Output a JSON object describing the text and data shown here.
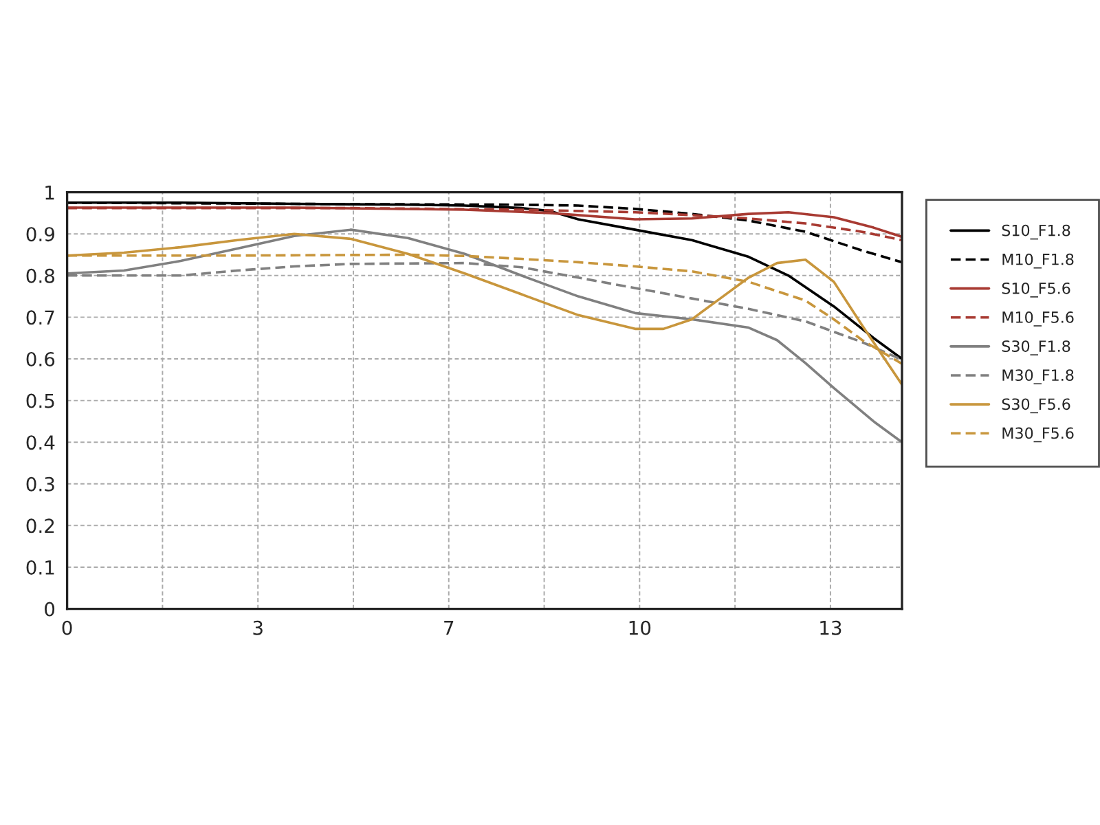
{
  "chart_data": {
    "type": "line",
    "xlim": [
      0,
      14.7
    ],
    "ylim": [
      0,
      1
    ],
    "xticks": [
      0,
      {
        "value": 1.68,
        "label": null
      },
      {
        "value": 3.36,
        "label": "3"
      },
      {
        "value": 5.04,
        "label": null
      },
      {
        "value": 6.72,
        "label": "7"
      },
      {
        "value": 8.4,
        "label": null
      },
      {
        "value": 10.08,
        "label": "10"
      },
      {
        "value": 11.76,
        "label": null
      },
      {
        "value": 13.44,
        "label": "13"
      }
    ],
    "yticks": [
      0,
      0.1,
      0.2,
      0.3,
      0.4,
      0.5,
      0.6,
      0.7,
      0.8,
      0.9,
      1
    ],
    "grid": true,
    "legend": "right",
    "marker": "none",
    "series": [
      {
        "name": "S10_F1.8",
        "color": "#000000",
        "line_style": "solid",
        "x": [
          0,
          2,
          4,
          6,
          7,
          8,
          8.5,
          9,
          10,
          11,
          12,
          12.7,
          13.5,
          14.2,
          14.7
        ],
        "values": [
          0.975,
          0.975,
          0.972,
          0.97,
          0.968,
          0.962,
          0.955,
          0.935,
          0.91,
          0.885,
          0.845,
          0.8,
          0.726,
          0.65,
          0.6
        ]
      },
      {
        "name": "M10_F1.8",
        "color": "#000000",
        "line_style": "dashed",
        "x": [
          0,
          4,
          8,
          9,
          10,
          11,
          12,
          13,
          14,
          14.7
        ],
        "values": [
          0.975,
          0.972,
          0.97,
          0.968,
          0.96,
          0.948,
          0.932,
          0.905,
          0.86,
          0.832
        ]
      },
      {
        "name": "S10_F5.6",
        "color": "#a83a32",
        "line_style": "solid",
        "x": [
          0,
          4,
          7,
          8.5,
          10,
          11,
          12,
          12.7,
          13.5,
          14.2,
          14.7
        ],
        "values": [
          0.963,
          0.963,
          0.958,
          0.95,
          0.935,
          0.937,
          0.948,
          0.952,
          0.94,
          0.915,
          0.893
        ]
      },
      {
        "name": "M10_F5.6",
        "color": "#a83a32",
        "line_style": "dashed",
        "x": [
          0,
          5,
          8,
          10,
          11,
          12,
          13,
          14,
          14.7
        ],
        "values": [
          0.962,
          0.962,
          0.958,
          0.952,
          0.945,
          0.937,
          0.925,
          0.905,
          0.885
        ]
      },
      {
        "name": "S30_F1.8",
        "color": "#808080",
        "line_style": "solid",
        "x": [
          0,
          1,
          2,
          3,
          4,
          5,
          6,
          7,
          8,
          9,
          10,
          11,
          12,
          12.5,
          13,
          13.5,
          14.2,
          14.7
        ],
        "values": [
          0.805,
          0.812,
          0.835,
          0.865,
          0.895,
          0.91,
          0.89,
          0.852,
          0.8,
          0.75,
          0.71,
          0.695,
          0.675,
          0.645,
          0.59,
          0.53,
          0.45,
          0.4
        ]
      },
      {
        "name": "M30_F1.8",
        "color": "#808080",
        "line_style": "dashed",
        "x": [
          0,
          2,
          3,
          4,
          5,
          7,
          8,
          9,
          10,
          11,
          12,
          13,
          14,
          14.7
        ],
        "values": [
          0.8,
          0.8,
          0.812,
          0.822,
          0.828,
          0.83,
          0.82,
          0.795,
          0.77,
          0.745,
          0.72,
          0.69,
          0.64,
          0.598
        ]
      },
      {
        "name": "S30_F5.6",
        "color": "#c8963c",
        "line_style": "solid",
        "x": [
          0,
          1,
          2,
          3,
          4,
          5,
          6,
          7,
          8,
          9,
          10,
          10.5,
          11,
          11.5,
          12,
          12.5,
          13,
          13.5,
          14,
          14.7
        ],
        "values": [
          0.848,
          0.855,
          0.868,
          0.885,
          0.9,
          0.888,
          0.852,
          0.805,
          0.755,
          0.705,
          0.672,
          0.672,
          0.695,
          0.745,
          0.795,
          0.83,
          0.838,
          0.785,
          0.68,
          0.538
        ]
      },
      {
        "name": "M30_F5.6",
        "color": "#c8963c",
        "line_style": "dashed",
        "x": [
          0,
          3,
          6,
          7,
          8,
          9,
          10,
          11,
          12,
          13,
          13.5,
          14,
          14.7
        ],
        "values": [
          0.848,
          0.848,
          0.85,
          0.847,
          0.84,
          0.832,
          0.822,
          0.81,
          0.785,
          0.74,
          0.695,
          0.645,
          0.588
        ]
      }
    ]
  }
}
